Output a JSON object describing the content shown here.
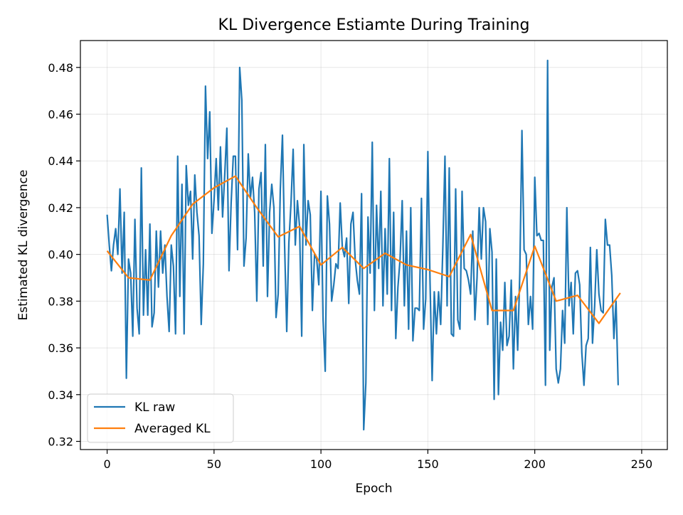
{
  "chart_data": {
    "type": "line",
    "title": "KL Divergence Estiamte During Training",
    "xlabel": "Epoch",
    "ylabel": "Estimated KL divergence",
    "xlim": [
      -12.5,
      262
    ],
    "ylim": [
      0.3165,
      0.4915
    ],
    "x_ticks": [
      0,
      50,
      100,
      150,
      200,
      250
    ],
    "y_ticks": [
      0.32,
      0.34,
      0.36,
      0.38,
      0.4,
      0.42,
      0.44,
      0.46,
      0.48
    ],
    "y_tick_labels": [
      "0.32",
      "0.34",
      "0.36",
      "0.38",
      "0.40",
      "0.42",
      "0.44",
      "0.46",
      "0.48"
    ],
    "grid": true,
    "legend_position": "lower-left",
    "series": [
      {
        "name": "KL raw",
        "color": "#1f77b4",
        "x_start": 0,
        "x_step": 1,
        "values": [
          0.417,
          0.404,
          0.393,
          0.404,
          0.411,
          0.4,
          0.428,
          0.392,
          0.418,
          0.347,
          0.398,
          0.392,
          0.365,
          0.415,
          0.377,
          0.366,
          0.437,
          0.374,
          0.402,
          0.374,
          0.413,
          0.369,
          0.375,
          0.41,
          0.386,
          0.41,
          0.392,
          0.404,
          0.382,
          0.367,
          0.404,
          0.395,
          0.366,
          0.442,
          0.382,
          0.43,
          0.366,
          0.438,
          0.421,
          0.427,
          0.398,
          0.434,
          0.418,
          0.408,
          0.37,
          0.396,
          0.472,
          0.441,
          0.461,
          0.409,
          0.423,
          0.441,
          0.419,
          0.446,
          0.416,
          0.434,
          0.454,
          0.393,
          0.422,
          0.442,
          0.442,
          0.402,
          0.48,
          0.466,
          0.395,
          0.407,
          0.443,
          0.424,
          0.433,
          0.418,
          0.38,
          0.428,
          0.435,
          0.395,
          0.447,
          0.382,
          0.418,
          0.43,
          0.42,
          0.373,
          0.383,
          0.428,
          0.451,
          0.404,
          0.367,
          0.405,
          0.422,
          0.445,
          0.404,
          0.423,
          0.412,
          0.365,
          0.447,
          0.404,
          0.423,
          0.417,
          0.376,
          0.4,
          0.398,
          0.387,
          0.427,
          0.372,
          0.35,
          0.425,
          0.413,
          0.38,
          0.387,
          0.396,
          0.394,
          0.422,
          0.403,
          0.399,
          0.407,
          0.379,
          0.413,
          0.418,
          0.398,
          0.389,
          0.383,
          0.426,
          0.325,
          0.345,
          0.416,
          0.392,
          0.448,
          0.376,
          0.421,
          0.394,
          0.427,
          0.378,
          0.411,
          0.383,
          0.441,
          0.376,
          0.418,
          0.364,
          0.386,
          0.398,
          0.423,
          0.378,
          0.41,
          0.368,
          0.42,
          0.363,
          0.377,
          0.377,
          0.376,
          0.424,
          0.368,
          0.381,
          0.444,
          0.389,
          0.346,
          0.384,
          0.366,
          0.384,
          0.37,
          0.403,
          0.442,
          0.378,
          0.437,
          0.366,
          0.365,
          0.428,
          0.372,
          0.368,
          0.427,
          0.394,
          0.393,
          0.389,
          0.383,
          0.41,
          0.372,
          0.39,
          0.42,
          0.398,
          0.42,
          0.414,
          0.37,
          0.411,
          0.401,
          0.338,
          0.398,
          0.34,
          0.371,
          0.359,
          0.388,
          0.361,
          0.365,
          0.389,
          0.351,
          0.382,
          0.359,
          0.392,
          0.453,
          0.402,
          0.4,
          0.37,
          0.382,
          0.368,
          0.433,
          0.408,
          0.409,
          0.406,
          0.406,
          0.344,
          0.483,
          0.359,
          0.386,
          0.39,
          0.351,
          0.345,
          0.351,
          0.376,
          0.362,
          0.42,
          0.378,
          0.388,
          0.366,
          0.392,
          0.393,
          0.387,
          0.358,
          0.344,
          0.361,
          0.364,
          0.403,
          0.362,
          0.378,
          0.402,
          0.383,
          0.376,
          0.375,
          0.415,
          0.404,
          0.404,
          0.391,
          0.364,
          0.38,
          0.344
        ]
      },
      {
        "name": "Averaged KL",
        "color": "#ff7f0e",
        "x": [
          0,
          10,
          20,
          30,
          40,
          50,
          60,
          70,
          80,
          90,
          100,
          110,
          120,
          130,
          140,
          150,
          160,
          170,
          180,
          190,
          200,
          210,
          220,
          230,
          240
        ],
        "values": [
          0.4015,
          0.39,
          0.389,
          0.408,
          0.4215,
          0.4285,
          0.4335,
          0.42,
          0.4075,
          0.412,
          0.3955,
          0.403,
          0.394,
          0.4005,
          0.3955,
          0.3935,
          0.3905,
          0.4085,
          0.376,
          0.376,
          0.4035,
          0.38,
          0.3825,
          0.3705,
          0.3835
        ]
      }
    ]
  }
}
